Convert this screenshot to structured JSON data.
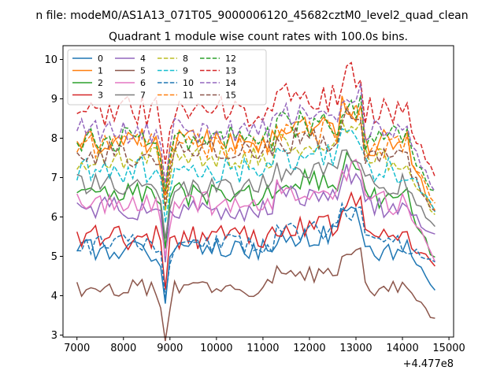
{
  "suptitle": "n file: modeM0/AS1A13_071T05_9000006120_45682cztM0_level2_quad_clean",
  "chart_data": {
    "type": "line",
    "title": "Quadrant 1 module wise count rates with 100.0s bins.",
    "xlabel": "",
    "ylabel": "",
    "x_offset_label": "+4.477e8",
    "xlim": [
      6700,
      15100
    ],
    "ylim": [
      2.95,
      10.35
    ],
    "xticks": [
      7000,
      8000,
      9000,
      10000,
      11000,
      12000,
      13000,
      14000,
      15000
    ],
    "yticks": [
      3,
      4,
      5,
      6,
      7,
      8,
      9,
      10
    ],
    "grid": false,
    "legend": {
      "position": "top-left",
      "ncol": 4
    },
    "x_start": 7000,
    "x_step": 100,
    "n_points": 78,
    "dip_x": 8900,
    "series": [
      {
        "name": "0",
        "color": "#1f77b4",
        "dash": "solid",
        "base": 5.15,
        "end": 4.25,
        "amp": 0.28,
        "seed": 1
      },
      {
        "name": "1",
        "color": "#ff7f0e",
        "dash": "solid",
        "base": 7.9,
        "end": 6.2,
        "amp": 0.35,
        "seed": 2
      },
      {
        "name": "2",
        "color": "#2ca02c",
        "dash": "solid",
        "base": 6.55,
        "end": 4.9,
        "amp": 0.32,
        "seed": 3
      },
      {
        "name": "3",
        "color": "#d62728",
        "dash": "solid",
        "base": 5.5,
        "end": 4.9,
        "amp": 0.35,
        "seed": 4
      },
      {
        "name": "4",
        "color": "#9467bd",
        "dash": "solid",
        "base": 6.2,
        "end": 5.6,
        "amp": 0.32,
        "seed": 5
      },
      {
        "name": "5",
        "color": "#8c564b",
        "dash": "solid",
        "base": 4.2,
        "end": 3.38,
        "amp": 0.22,
        "seed": 6
      },
      {
        "name": "6",
        "color": "#e377c2",
        "dash": "solid",
        "base": 6.35,
        "end": 5.0,
        "amp": 0.3,
        "seed": 7
      },
      {
        "name": "7",
        "color": "#7f7f7f",
        "dash": "solid",
        "base": 6.8,
        "end": 5.8,
        "amp": 0.3,
        "seed": 8
      },
      {
        "name": "8",
        "color": "#bcbd22",
        "dash": "dashed",
        "base": 7.5,
        "end": 6.0,
        "amp": 0.32,
        "seed": 9
      },
      {
        "name": "9",
        "color": "#17becf",
        "dash": "dashed",
        "base": 7.2,
        "end": 6.3,
        "amp": 0.35,
        "seed": 10
      },
      {
        "name": "10",
        "color": "#1f77b4",
        "dash": "dashed",
        "base": 5.3,
        "end": 4.9,
        "amp": 0.25,
        "seed": 11
      },
      {
        "name": "11",
        "color": "#ff7f0e",
        "dash": "dashed",
        "base": 7.8,
        "end": 6.3,
        "amp": 0.32,
        "seed": 12
      },
      {
        "name": "12",
        "color": "#2ca02c",
        "dash": "dashed",
        "base": 8.0,
        "end": 6.5,
        "amp": 0.35,
        "seed": 13
      },
      {
        "name": "13",
        "color": "#d62728",
        "dash": "dashed",
        "base": 8.7,
        "end": 7.1,
        "amp": 0.4,
        "seed": 14
      },
      {
        "name": "14",
        "color": "#9467bd",
        "dash": "dashed",
        "base": 8.2,
        "end": 6.6,
        "amp": 0.35,
        "seed": 15
      },
      {
        "name": "15",
        "color": "#8c564b",
        "dash": "dashed",
        "base": 7.6,
        "end": 6.0,
        "amp": 0.35,
        "seed": 16
      }
    ]
  }
}
